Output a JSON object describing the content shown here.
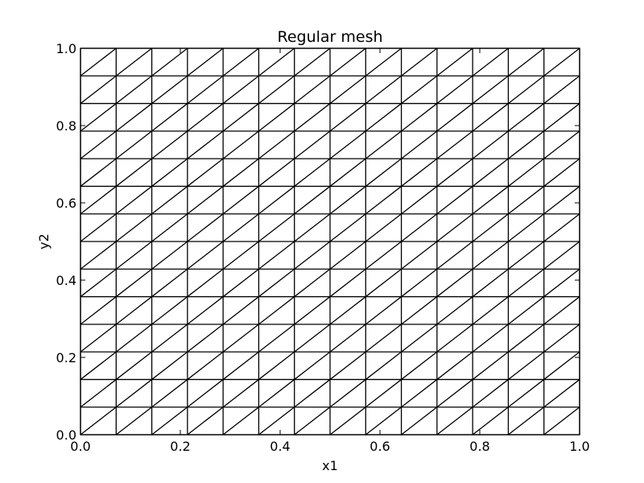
{
  "chart_data": {
    "type": "triangular-mesh",
    "title": "Regular mesh",
    "xlabel": "x1",
    "ylabel": "y2",
    "xlim": [
      0.0,
      1.0
    ],
    "ylim": [
      0.0,
      1.0
    ],
    "x_ticks": [
      0.0,
      0.2,
      0.4,
      0.6,
      0.8,
      1.0
    ],
    "y_ticks": [
      0.0,
      0.2,
      0.4,
      0.6,
      0.8,
      1.0
    ],
    "x_tick_labels": [
      "0.0",
      "0.2",
      "0.4",
      "0.6",
      "0.8",
      "1.0"
    ],
    "y_tick_labels": [
      "0.0",
      "0.2",
      "0.4",
      "0.6",
      "0.8",
      "1.0"
    ],
    "mesh": {
      "nx_cells": 14,
      "ny_cells": 14,
      "diagonal": "lower-left to upper-right"
    },
    "grid": false,
    "line_color": "#000000",
    "background_color": "#ffffff"
  }
}
